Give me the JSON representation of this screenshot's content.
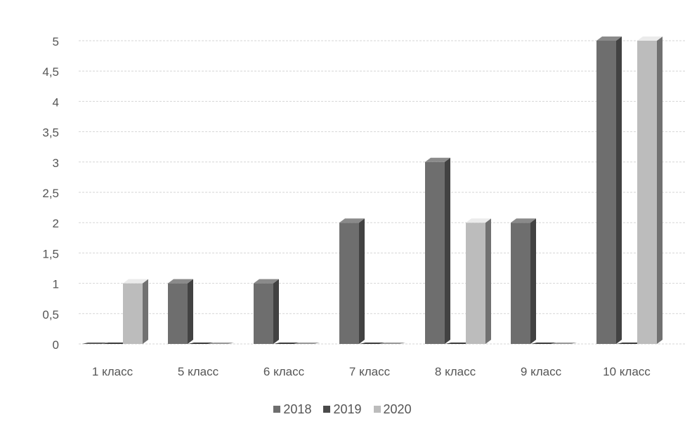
{
  "chart_data": {
    "type": "bar",
    "categories": [
      "1 класс",
      "5 класс",
      "6 класс",
      "7 класс",
      "8 класс",
      "9 класс",
      "10 класс"
    ],
    "series": [
      {
        "name": "2018",
        "color": "#6e6e6e",
        "values": [
          0,
          1,
          1,
          2,
          3,
          2,
          5
        ]
      },
      {
        "name": "2019",
        "color": "#4a4a4a",
        "values": [
          0,
          0,
          0,
          0,
          0,
          0,
          0
        ]
      },
      {
        "name": "2020",
        "color": "#bcbcbc",
        "values": [
          1,
          0,
          0,
          0,
          2,
          0,
          5
        ]
      }
    ],
    "y_tick_labels": [
      "0",
      "0,5",
      "1",
      "1,5",
      "2",
      "2,5",
      "3",
      "3,5",
      "4",
      "4,5",
      "5"
    ],
    "ylim": [
      0,
      5
    ],
    "grid": true,
    "legend_position": "bottom",
    "title": "",
    "xlabel": "",
    "ylabel": ""
  }
}
